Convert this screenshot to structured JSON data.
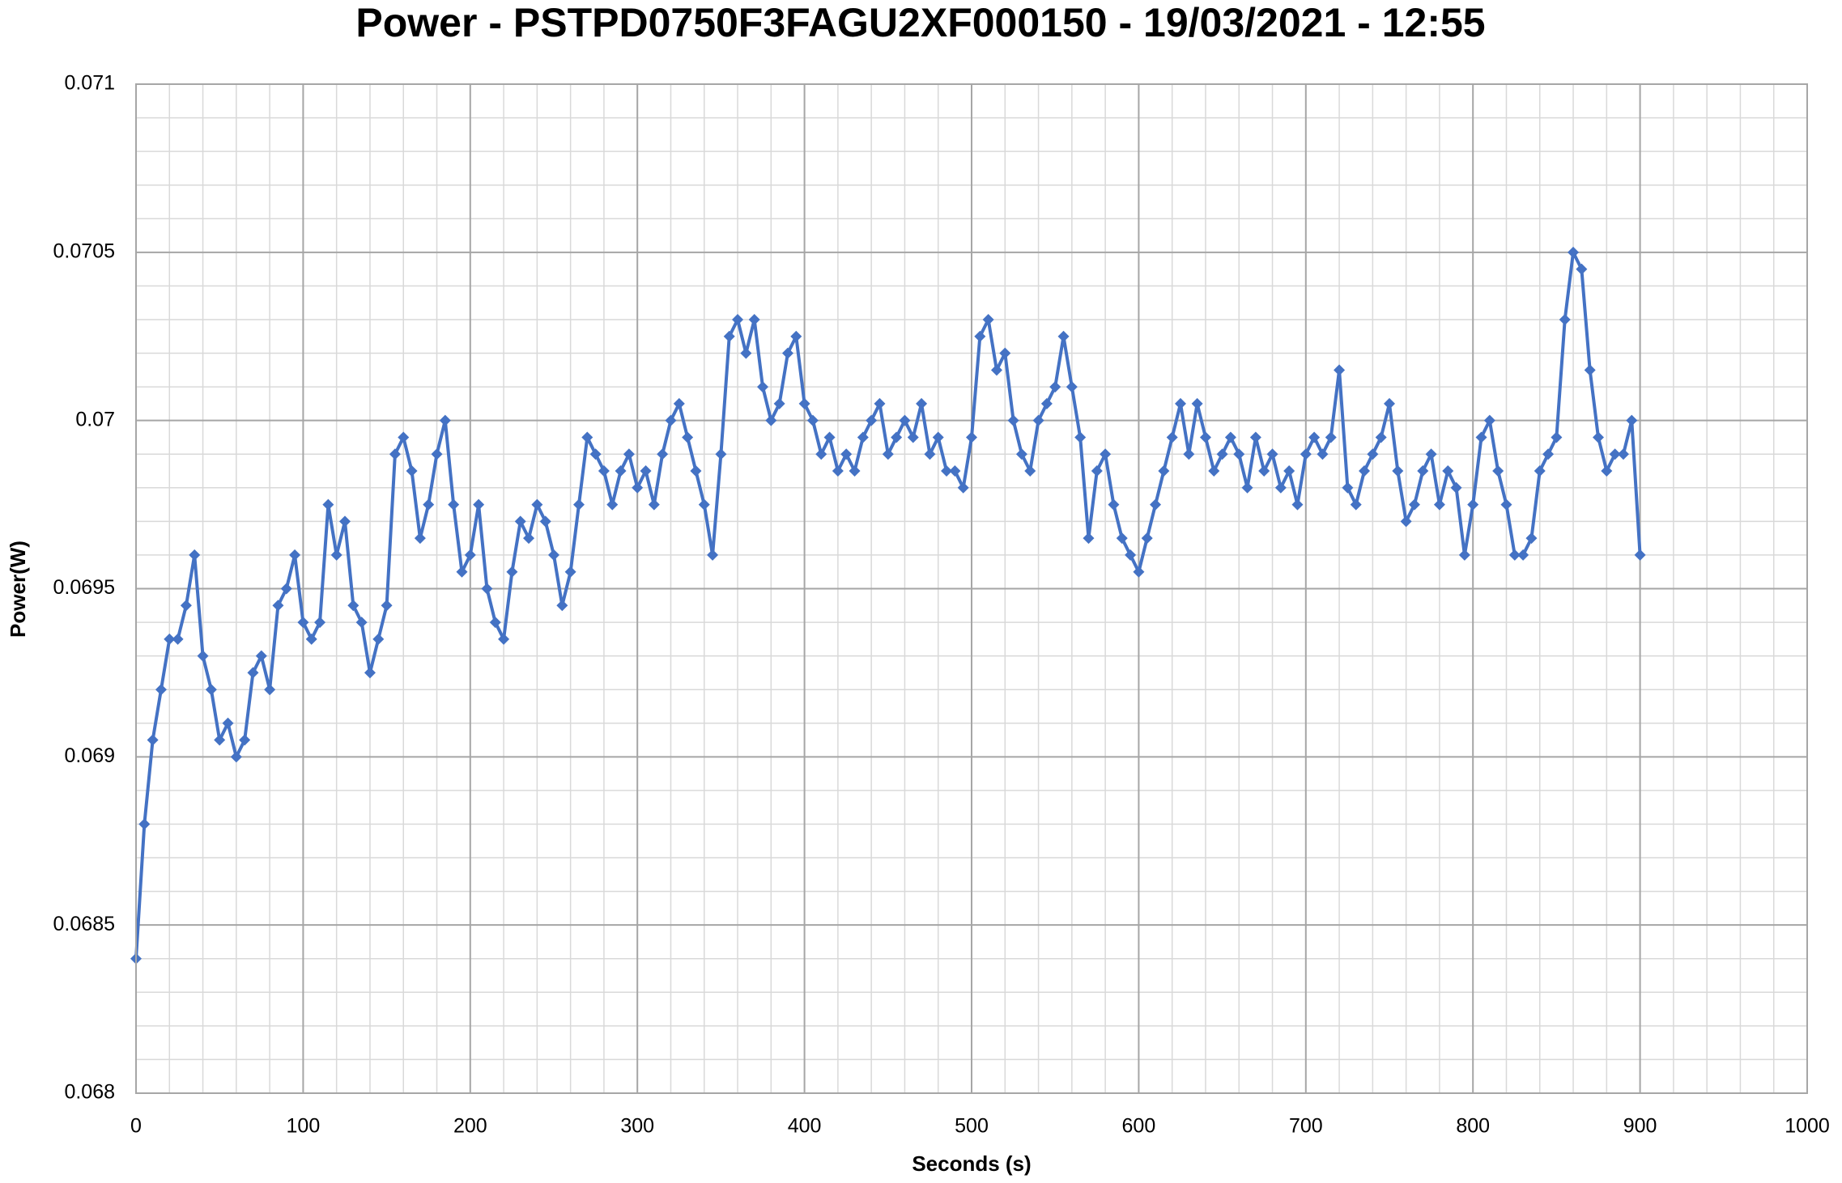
{
  "chart_data": {
    "type": "line",
    "title": "Power - PSTPD0750F3FAGU2XF000150 - 19/03/2021 - 12:55",
    "x_label": "Seconds (s)",
    "y_label": "Power(W)",
    "x": [
      0,
      5,
      10,
      15,
      20,
      25,
      30,
      35,
      40,
      45,
      50,
      55,
      60,
      65,
      70,
      75,
      80,
      85,
      90,
      95,
      100,
      105,
      110,
      115,
      120,
      125,
      130,
      135,
      140,
      145,
      150,
      155,
      160,
      165,
      170,
      175,
      180,
      185,
      190,
      195,
      200,
      205,
      210,
      215,
      220,
      225,
      230,
      235,
      240,
      245,
      250,
      255,
      260,
      265,
      270,
      275,
      280,
      285,
      290,
      295,
      300,
      305,
      310,
      315,
      320,
      325,
      330,
      335,
      340,
      345,
      350,
      355,
      360,
      365,
      370,
      375,
      380,
      385,
      390,
      395,
      400,
      405,
      410,
      415,
      420,
      425,
      430,
      435,
      440,
      445,
      450,
      455,
      460,
      465,
      470,
      475,
      480,
      485,
      490,
      495,
      500,
      505,
      510,
      515,
      520,
      525,
      530,
      535,
      540,
      545,
      550,
      555,
      560,
      565,
      570,
      575,
      580,
      585,
      590,
      595,
      600,
      605,
      610,
      615,
      620,
      625,
      630,
      635,
      640,
      645,
      650,
      655,
      660,
      665,
      670,
      675,
      680,
      685,
      690,
      695,
      700,
      705,
      710,
      715,
      720,
      725,
      730,
      735,
      740,
      745,
      750,
      755,
      760,
      765,
      770,
      775,
      780,
      785,
      790,
      795,
      800,
      805,
      810,
      815,
      820,
      825,
      830,
      835,
      840,
      845,
      850,
      855,
      860,
      865,
      870,
      875,
      880,
      885,
      890,
      895,
      900
    ],
    "series": [
      {
        "color": "#4472c4",
        "marker": "diamond",
        "values": [
          0.0684,
          0.0688,
          0.06905,
          0.0692,
          0.06935,
          0.06935,
          0.06945,
          0.0696,
          0.0693,
          0.0692,
          0.06905,
          0.0691,
          0.069,
          0.06905,
          0.06925,
          0.0693,
          0.0692,
          0.06945,
          0.0695,
          0.0696,
          0.0694,
          0.06935,
          0.0694,
          0.06975,
          0.0696,
          0.0697,
          0.06945,
          0.0694,
          0.06925,
          0.06935,
          0.06945,
          0.0699,
          0.06995,
          0.06985,
          0.06965,
          0.06975,
          0.0699,
          0.07,
          0.06975,
          0.06955,
          0.0696,
          0.06975,
          0.0695,
          0.0694,
          0.06935,
          0.06955,
          0.0697,
          0.06965,
          0.06975,
          0.0697,
          0.0696,
          0.06945,
          0.06955,
          0.06975,
          0.06995,
          0.0699,
          0.06985,
          0.06975,
          0.06985,
          0.0699,
          0.0698,
          0.06985,
          0.06975,
          0.0699,
          0.07,
          0.07005,
          0.06995,
          0.06985,
          0.06975,
          0.0696,
          0.0699,
          0.07025,
          0.0703,
          0.0702,
          0.0703,
          0.0701,
          0.07,
          0.07005,
          0.0702,
          0.07025,
          0.07005,
          0.07,
          0.0699,
          0.06995,
          0.06985,
          0.0699,
          0.06985,
          0.06995,
          0.07,
          0.07005,
          0.0699,
          0.06995,
          0.07,
          0.06995,
          0.07005,
          0.0699,
          0.06995,
          0.06985,
          0.06985,
          0.0698,
          0.06995,
          0.07025,
          0.0703,
          0.07015,
          0.0702,
          0.07,
          0.0699,
          0.06985,
          0.07,
          0.07005,
          0.0701,
          0.07025,
          0.0701,
          0.06995,
          0.06965,
          0.06985,
          0.0699,
          0.06975,
          0.06965,
          0.0696,
          0.06955,
          0.06965,
          0.06975,
          0.06985,
          0.06995,
          0.07005,
          0.0699,
          0.07005,
          0.06995,
          0.06985,
          0.0699,
          0.06995,
          0.0699,
          0.0698,
          0.06995,
          0.06985,
          0.0699,
          0.0698,
          0.06985,
          0.06975,
          0.0699,
          0.06995,
          0.0699,
          0.06995,
          0.07015,
          0.0698,
          0.06975,
          0.06985,
          0.0699,
          0.06995,
          0.07005,
          0.06985,
          0.0697,
          0.06975,
          0.06985,
          0.0699,
          0.06975,
          0.06985,
          0.0698,
          0.0696,
          0.06975,
          0.06995,
          0.07,
          0.06985,
          0.06975,
          0.0696,
          0.0696,
          0.06965,
          0.06985,
          0.0699,
          0.06995,
          0.0703,
          0.0705,
          0.07045,
          0.07015,
          0.06995,
          0.06985,
          0.0699,
          0.0699,
          0.07,
          0.0696
        ]
      }
    ],
    "xlim": [
      0,
      1000
    ],
    "xticks": [
      0,
      100,
      200,
      300,
      400,
      500,
      600,
      700,
      800,
      900,
      1000
    ],
    "ylim": [
      0.068,
      0.071
    ],
    "yticks": [
      0.068,
      0.0685,
      0.069,
      0.0695,
      0.07,
      0.0705,
      0.071
    ],
    "grid": true,
    "minor_grid": {
      "x": 20,
      "y": 0.0001
    }
  }
}
